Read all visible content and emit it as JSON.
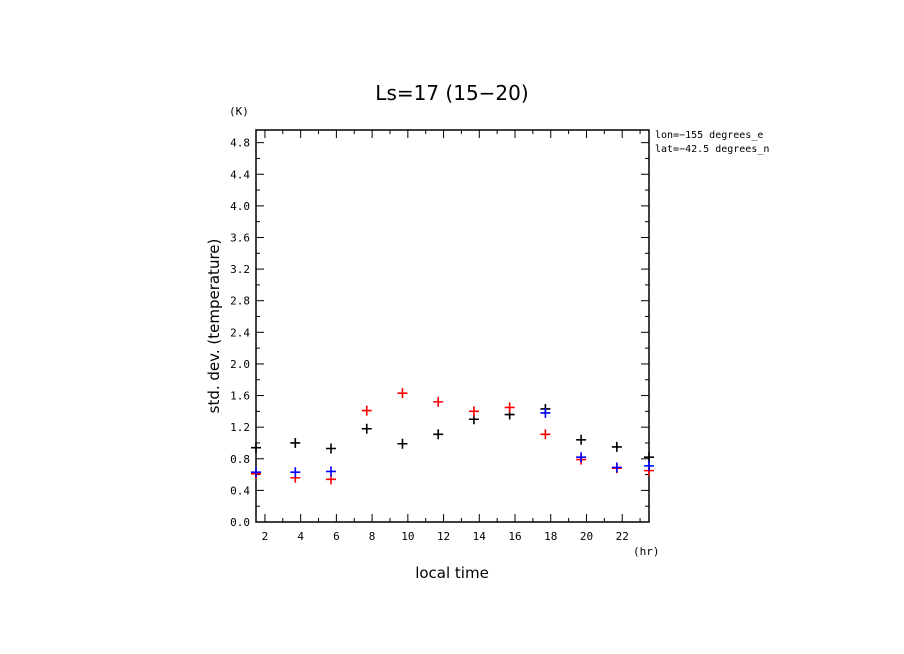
{
  "chart_data": {
    "type": "scatter",
    "title": "Ls=17 (15−20)",
    "xlabel": "local time",
    "ylabel": "std. dev. (temperature)",
    "x_unit": "(hr)",
    "y_unit": "(K)",
    "annotations": [
      "lon=−155 degrees_e",
      "lat=−42.5 degrees_n"
    ],
    "xlim": [
      1.5,
      23.5
    ],
    "ylim": [
      0,
      4.96
    ],
    "xticks": [
      2,
      4,
      6,
      8,
      10,
      12,
      14,
      16,
      18,
      20,
      22
    ],
    "xtick_labels": [
      "2",
      "4",
      "6",
      "8",
      "10",
      "12",
      "14",
      "16",
      "18",
      "20",
      "22"
    ],
    "yticks": [
      0.0,
      0.4,
      0.8,
      1.2,
      1.6,
      2.0,
      2.4,
      2.8,
      3.2,
      3.6,
      4.0,
      4.4,
      4.8
    ],
    "ytick_labels": [
      "0.0",
      "0.4",
      "0.8",
      "1.2",
      "1.6",
      "2.0",
      "2.4",
      "2.8",
      "3.2",
      "3.6",
      "4.0",
      "4.4",
      "4.8"
    ],
    "series": [
      {
        "color": "#000000",
        "points": [
          [
            1.5,
            0.94
          ],
          [
            3.7,
            1.0
          ],
          [
            5.7,
            0.93
          ],
          [
            7.7,
            1.18
          ],
          [
            9.7,
            0.99
          ],
          [
            11.7,
            1.11
          ],
          [
            13.7,
            1.3
          ],
          [
            15.7,
            1.36
          ],
          [
            17.7,
            1.43
          ],
          [
            19.7,
            1.04
          ],
          [
            21.7,
            0.95
          ],
          [
            23.5,
            0.82
          ]
        ]
      },
      {
        "color": "#ff0000",
        "points": [
          [
            1.5,
            0.61
          ],
          [
            3.7,
            0.56
          ],
          [
            5.7,
            0.54
          ],
          [
            7.7,
            1.41
          ],
          [
            9.7,
            1.63
          ],
          [
            11.7,
            1.52
          ],
          [
            13.7,
            1.4
          ],
          [
            15.7,
            1.45
          ],
          [
            17.7,
            1.11
          ],
          [
            19.7,
            0.79
          ],
          [
            21.7,
            0.68
          ],
          [
            23.5,
            0.65
          ]
        ]
      },
      {
        "color": "#0000ff",
        "points": [
          [
            1.5,
            0.63
          ],
          [
            3.7,
            0.63
          ],
          [
            5.7,
            0.64
          ],
          [
            17.7,
            1.38
          ],
          [
            19.7,
            0.82
          ],
          [
            21.7,
            0.69
          ],
          [
            23.5,
            0.71
          ]
        ]
      }
    ]
  }
}
